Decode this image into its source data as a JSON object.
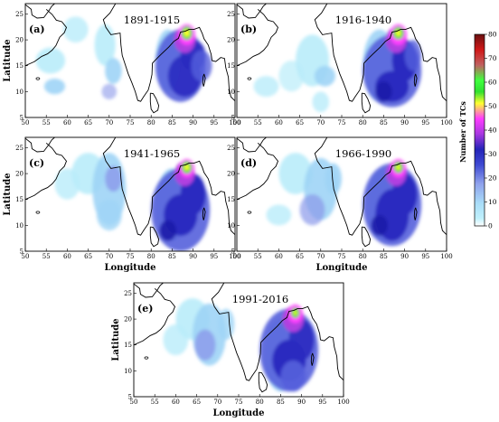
{
  "colorbar": {
    "title": "Number of TCs",
    "ticks": [
      "0",
      "10",
      "20",
      "30",
      "40",
      "50",
      "60",
      "70",
      "80"
    ],
    "stops": [
      "#ffffff",
      "#aee9fb",
      "#9fb6ee",
      "#4a56d8",
      "#2020b0",
      "#a030d8",
      "#ff30ff",
      "#ffff20",
      "#20d020",
      "#30ff30",
      "#b04040",
      "#d01010",
      "#701010"
    ]
  },
  "panels": [
    {
      "label": "(a)",
      "period": "1891-1915"
    },
    {
      "label": "(b)",
      "period": "1916-1940"
    },
    {
      "label": "(c)",
      "period": "1941-1965"
    },
    {
      "label": "(d)",
      "period": "1966-1990"
    },
    {
      "label": "(e)",
      "period": "1991-2016"
    }
  ],
  "axes": {
    "xlabel": "Longitude",
    "ylabel": "Latitude",
    "xticks": [
      "50",
      "55",
      "60",
      "65",
      "70",
      "75",
      "80",
      "85",
      "90",
      "95",
      "100"
    ],
    "yticks": [
      "5",
      "10",
      "15",
      "20",
      "25"
    ]
  },
  "chart_data": {
    "type": "heatmap",
    "title": "",
    "xlabel": "Longitude",
    "ylabel": "Latitude",
    "xlim": [
      50,
      100
    ],
    "ylim": [
      5,
      27
    ],
    "colorbar_label": "Number of TCs",
    "colorbar_range": [
      0,
      80
    ],
    "colors": {
      "low": "#aee9fb",
      "mid": "#2828c0",
      "high": "#ffff30"
    },
    "series": [
      {
        "period": "1891-1915",
        "max_lon": 88.5,
        "max_lat": 21.5,
        "peak": 55
      },
      {
        "period": "1916-1940",
        "max_lon": 88.5,
        "max_lat": 21.5,
        "peak": 50
      },
      {
        "period": "1941-1965",
        "max_lon": 88.5,
        "max_lat": 21.0,
        "peak": 45
      },
      {
        "period": "1966-1990",
        "max_lon": 88.5,
        "max_lat": 21.0,
        "peak": 42
      },
      {
        "period": "1991-2016",
        "max_lon": 88.5,
        "max_lat": 21.5,
        "peak": 38
      }
    ]
  }
}
